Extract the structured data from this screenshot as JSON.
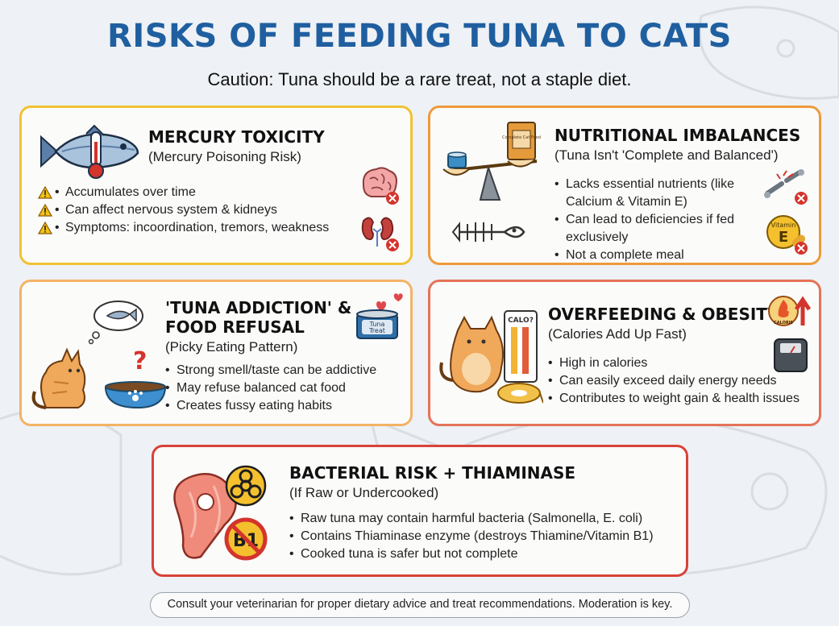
{
  "title": "RISKS OF FEEDING TUNA TO CATS",
  "subtitle": "Caution: Tuna should be a rare treat, not a staple diet.",
  "cards": {
    "mercury": {
      "title": "MERCURY TOXICITY",
      "subtitle": "(Mercury Poisoning Risk)",
      "bullets": [
        "Accumulates over time",
        "Can affect nervous system & kidneys",
        "Symptoms: incoordination, tremors, weakness"
      ]
    },
    "nutrition": {
      "title": "NUTRITIONAL IMBALANCES",
      "subtitle": "(Tuna Isn't 'Complete and Balanced')",
      "bullets": [
        "Lacks essential nutrients (like Calcium & Vitamin E)",
        "Can lead to deficiencies if fed exclusively",
        "Not a complete meal"
      ],
      "bag_label": "Complete Cat Food",
      "vitamin_label": "Vitamin",
      "vitamin_letter": "E"
    },
    "addiction": {
      "title_line1": "'TUNA ADDICTION' &",
      "title_line2": "FOOD REFUSAL",
      "subtitle": "(Picky Eating Pattern)",
      "bullets": [
        "Strong smell/taste can be addictive",
        "May refuse balanced cat food",
        "Creates fussy eating habits"
      ],
      "can_label_1": "Tuna",
      "can_label_2": "Treat"
    },
    "obesity": {
      "title": "OVERFEEDING & OBESITY",
      "subtitle": "(Calories Add Up Fast)",
      "bullets": [
        "High in calories",
        "Can easily exceed daily energy needs",
        "Contributes to weight gain & health issues"
      ],
      "calorie_chart_label": "CALO?",
      "calorie_badge": "CALORIE"
    },
    "bacterial": {
      "title": "BACTERIAL RISK + THIAMINASE",
      "subtitle": "(If Raw or Undercooked)",
      "bullets": [
        "Raw tuna may contain harmful bacteria (Salmonella, E. coli)",
        "Contains Thiaminase enzyme (destroys Thiamine/Vitamin B1)",
        "Cooked tuna is safer but not complete"
      ],
      "b1_label": "B1"
    }
  },
  "footer": "Consult your veterinarian for proper dietary advice and treat recommendations. Moderation is key.",
  "colors": {
    "title": "#1f5fa0",
    "mercury_border": "#f1c232",
    "nutrition_border": "#ef9a3a",
    "addiction_border": "#f3b366",
    "obesity_border": "#e57358",
    "bacterial_border": "#d8423a"
  }
}
